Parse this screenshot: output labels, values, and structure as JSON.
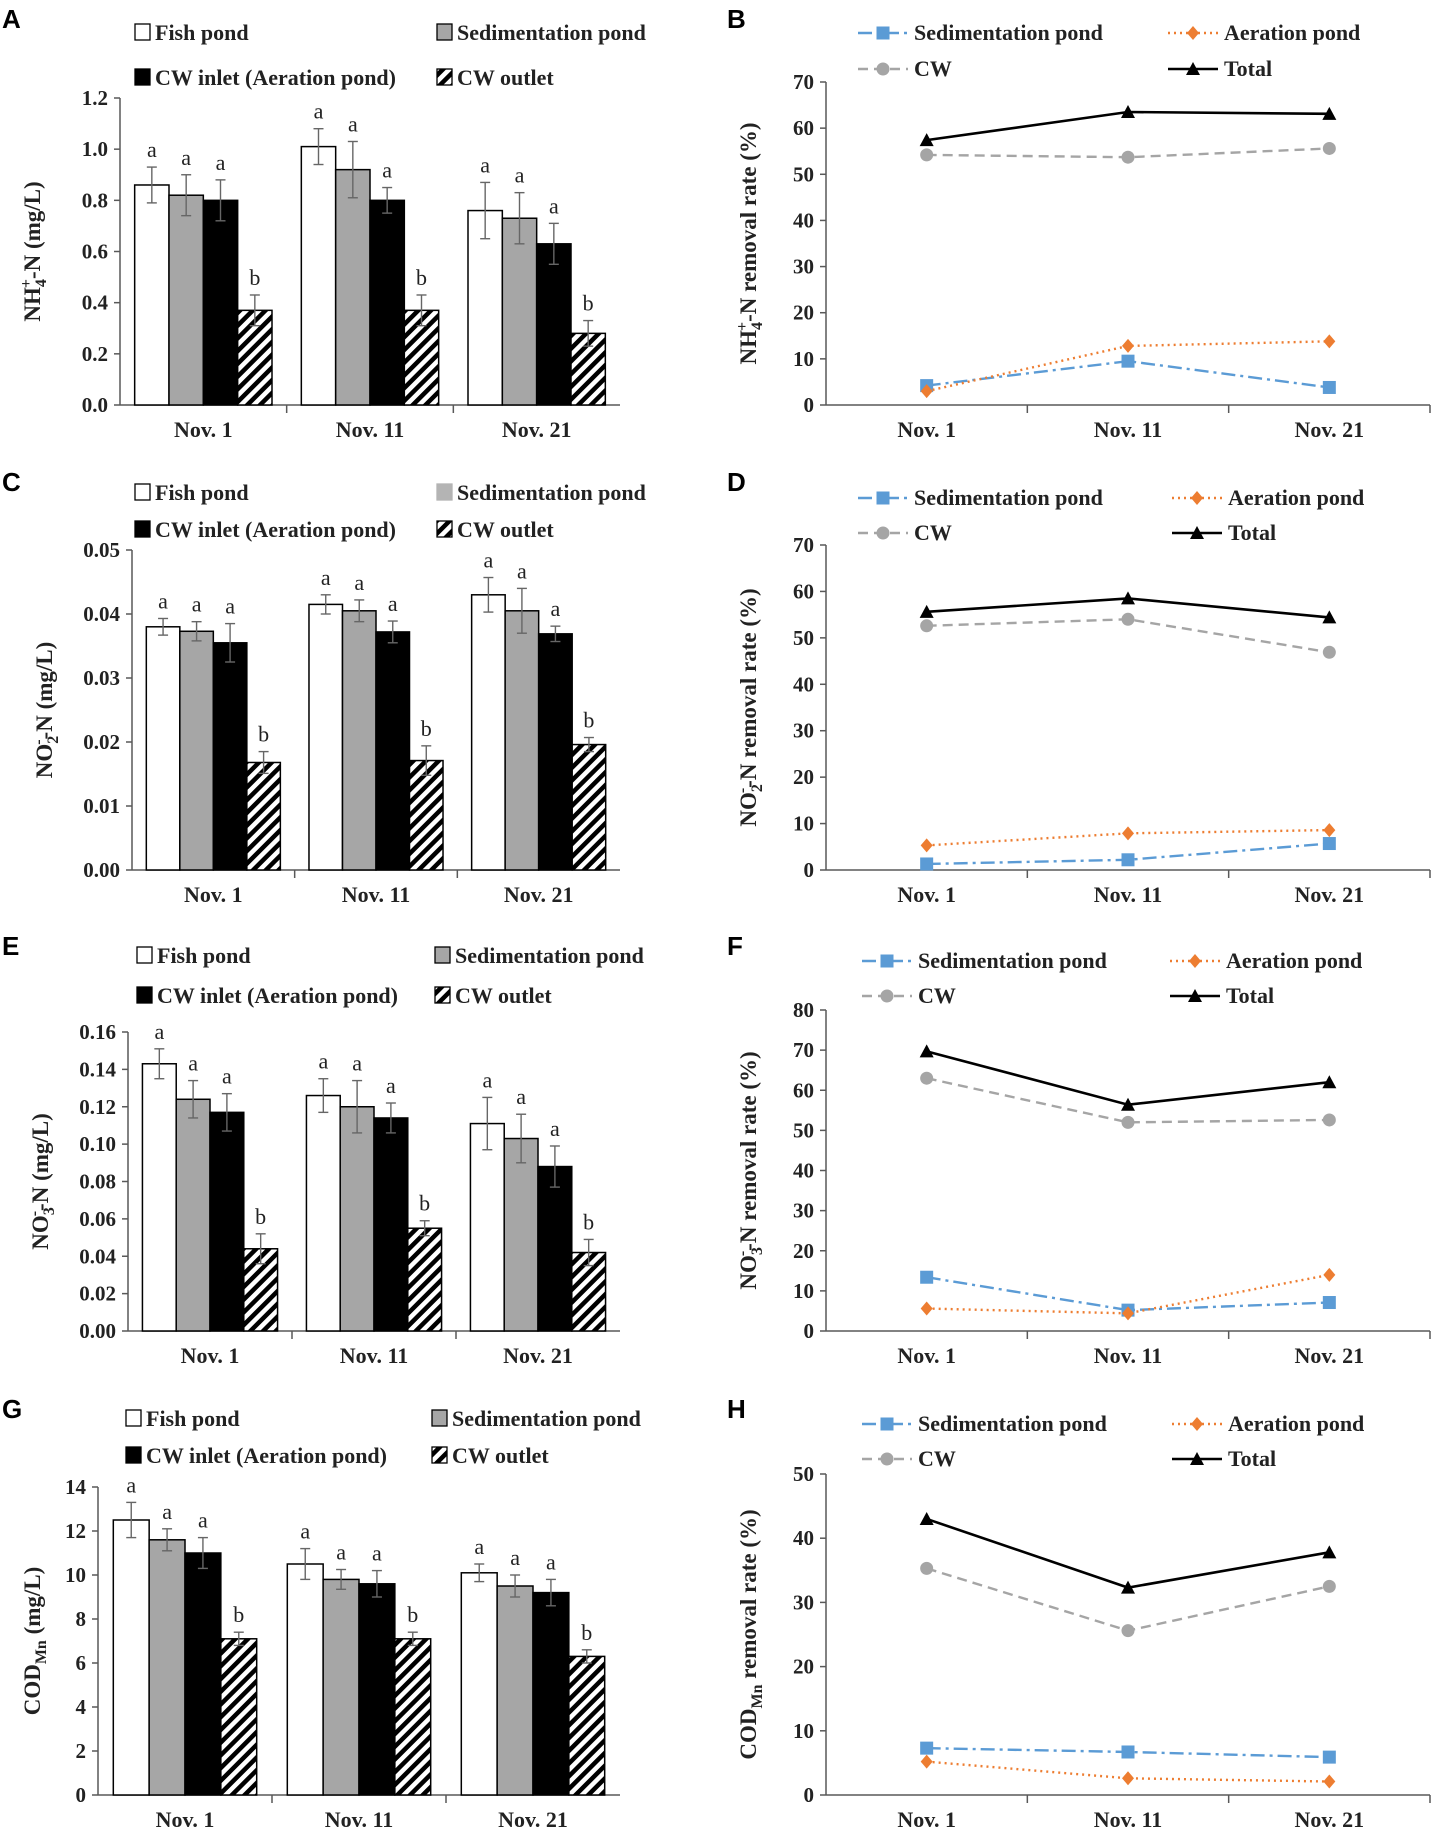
{
  "figure": {
    "panels": [
      {
        "letter": "A",
        "chart_index": 0
      },
      {
        "letter": "B",
        "chart_index": 1
      },
      {
        "letter": "C",
        "chart_index": 2
      },
      {
        "letter": "D",
        "chart_index": 3
      },
      {
        "letter": "E",
        "chart_index": 4
      },
      {
        "letter": "F",
        "chart_index": 5
      },
      {
        "letter": "G",
        "chart_index": 6
      },
      {
        "letter": "H",
        "chart_index": 7
      }
    ]
  },
  "colors": {
    "fish": "#ffffff",
    "sedimentation": "#a6a6a6",
    "inlet": "#000000",
    "sed_line": "#5b9bd5",
    "aer_line": "#ed7d31",
    "cw_line": "#a5a5a5",
    "total_line": "#000000"
  },
  "chart_data": [
    {
      "panel": "A",
      "type": "bar",
      "ylabel_main": "NH",
      "ylabel_sub": "4",
      "ylabel_sup": "+",
      "ylabel_tail": "-N   (mg/L)",
      "categories": [
        "Nov. 1",
        "Nov. 11",
        "Nov. 21"
      ],
      "ylim": [
        0,
        1.2
      ],
      "yticks": [
        "0.0",
        "0.2",
        "0.4",
        "0.6",
        "0.8",
        "1.0",
        "1.2"
      ],
      "series": [
        {
          "name": "Fish pond",
          "pattern": "fish",
          "values": [
            0.86,
            1.01,
            0.76
          ],
          "errors": [
            0.07,
            0.07,
            0.11
          ],
          "letters": [
            "a",
            "a",
            "a"
          ]
        },
        {
          "name": "Sedimentation pond",
          "pattern": "sedimentation",
          "values": [
            0.82,
            0.92,
            0.73
          ],
          "errors": [
            0.08,
            0.11,
            0.1
          ],
          "letters": [
            "a",
            "a",
            "a"
          ]
        },
        {
          "name": "CW inlet (Aeration pond)",
          "pattern": "inlet",
          "values": [
            0.8,
            0.8,
            0.63
          ],
          "errors": [
            0.08,
            0.05,
            0.08
          ],
          "letters": [
            "a",
            "a",
            "a"
          ]
        },
        {
          "name": "CW outlet",
          "pattern": "outlet",
          "values": [
            0.37,
            0.37,
            0.28
          ],
          "errors": [
            0.06,
            0.06,
            0.05
          ],
          "letters": [
            "b",
            "b",
            "b"
          ]
        }
      ]
    },
    {
      "panel": "B",
      "type": "line",
      "ylabel_main": "NH",
      "ylabel_sub": "4",
      "ylabel_sup": "+",
      "ylabel_tail": "-N removal rate (%)",
      "categories": [
        "Nov. 1",
        "Nov. 11",
        "Nov. 21"
      ],
      "ylim": [
        0,
        70
      ],
      "yticks": [
        "0",
        "10",
        "20",
        "30",
        "40",
        "50",
        "60",
        "70"
      ],
      "series": [
        {
          "name": "Sedimentation pond",
          "style": "sed",
          "values": [
            4.2,
            9.5,
            3.8
          ]
        },
        {
          "name": "Aeration pond",
          "style": "aer",
          "values": [
            3.0,
            12.8,
            13.8
          ]
        },
        {
          "name": "CW",
          "style": "cw",
          "values": [
            54.2,
            53.7,
            55.6
          ]
        },
        {
          "name": "Total",
          "style": "total",
          "values": [
            57.4,
            63.5,
            63.1
          ]
        }
      ]
    },
    {
      "panel": "C",
      "type": "bar",
      "ylabel_main": "NO",
      "ylabel_sub": "2",
      "ylabel_sup": "-",
      "ylabel_tail": "-N  (mg/L)",
      "categories": [
        "Nov. 1",
        "Nov. 11",
        "Nov. 21"
      ],
      "ylim": [
        0,
        0.05
      ],
      "yticks": [
        "0.00",
        "0.01",
        "0.02",
        "0.03",
        "0.04",
        "0.05"
      ],
      "series": [
        {
          "name": "Fish pond",
          "pattern": "fish",
          "values": [
            0.038,
            0.0415,
            0.043
          ],
          "errors": [
            0.0013,
            0.0015,
            0.0027
          ],
          "letters": [
            "a",
            "a",
            "a"
          ]
        },
        {
          "name": "Sedimentation pond",
          "pattern": "sedimentation",
          "values": [
            0.0373,
            0.0405,
            0.0405
          ],
          "errors": [
            0.0015,
            0.0017,
            0.0035
          ],
          "letters": [
            "a",
            "a",
            "a"
          ]
        },
        {
          "name": "CW inlet (Aeration pond)",
          "pattern": "inlet",
          "values": [
            0.0355,
            0.0372,
            0.0369
          ],
          "errors": [
            0.003,
            0.0017,
            0.0012
          ],
          "letters": [
            "a",
            "a",
            "a"
          ]
        },
        {
          "name": "CW outlet",
          "pattern": "outlet",
          "values": [
            0.0168,
            0.0171,
            0.0196
          ],
          "errors": [
            0.0017,
            0.0023,
            0.0011
          ],
          "letters": [
            "b",
            "b",
            "b"
          ]
        }
      ],
      "legend_gray": "#b4b4b4"
    },
    {
      "panel": "D",
      "type": "line",
      "ylabel_main": "NO",
      "ylabel_sub": "2",
      "ylabel_sup": "-",
      "ylabel_tail": "-N removal rate (%)",
      "categories": [
        "Nov. 1",
        "Nov. 11",
        "Nov. 21"
      ],
      "ylim": [
        0,
        70
      ],
      "yticks": [
        "0",
        "10",
        "20",
        "30",
        "40",
        "50",
        "60",
        "70"
      ],
      "series": [
        {
          "name": "Sedimentation pond",
          "style": "sed",
          "values": [
            1.3,
            2.2,
            5.7
          ]
        },
        {
          "name": "Aeration pond",
          "style": "aer",
          "values": [
            5.3,
            7.9,
            8.6
          ]
        },
        {
          "name": "CW",
          "style": "cw",
          "values": [
            52.6,
            54.0,
            46.9
          ]
        },
        {
          "name": "Total",
          "style": "total",
          "values": [
            55.6,
            58.5,
            54.4
          ]
        }
      ]
    },
    {
      "panel": "E",
      "type": "bar",
      "ylabel_main": "NO",
      "ylabel_sub": "3",
      "ylabel_sup": "-",
      "ylabel_tail": "-N  (mg/L)",
      "categories": [
        "Nov. 1",
        "Nov. 11",
        "Nov. 21"
      ],
      "ylim": [
        0,
        0.16
      ],
      "yticks": [
        "0.00",
        "0.02",
        "0.04",
        "0.06",
        "0.08",
        "0.10",
        "0.12",
        "0.14",
        "0.16"
      ],
      "series": [
        {
          "name": "Fish pond",
          "pattern": "fish",
          "values": [
            0.143,
            0.126,
            0.111
          ],
          "errors": [
            0.008,
            0.009,
            0.014
          ],
          "letters": [
            "a",
            "a",
            "a"
          ]
        },
        {
          "name": "Sedimentation pond",
          "pattern": "sedimentation",
          "values": [
            0.124,
            0.12,
            0.103
          ],
          "errors": [
            0.01,
            0.014,
            0.013
          ],
          "letters": [
            "a",
            "a",
            "a"
          ]
        },
        {
          "name": "CW inlet (Aeration pond)",
          "pattern": "inlet",
          "values": [
            0.117,
            0.114,
            0.088
          ],
          "errors": [
            0.01,
            0.008,
            0.011
          ],
          "letters": [
            "a",
            "a",
            "a"
          ]
        },
        {
          "name": "CW outlet",
          "pattern": "outlet",
          "values": [
            0.044,
            0.055,
            0.042
          ],
          "errors": [
            0.008,
            0.004,
            0.007
          ],
          "letters": [
            "b",
            "b",
            "b"
          ]
        }
      ]
    },
    {
      "panel": "F",
      "type": "line",
      "ylabel_main": "NO",
      "ylabel_sub": "3",
      "ylabel_sup": "-",
      "ylabel_tail": "-N removal rate (%)",
      "categories": [
        "Nov. 1",
        "Nov. 11",
        "Nov. 21"
      ],
      "ylim": [
        0,
        80
      ],
      "yticks": [
        "0",
        "10",
        "20",
        "30",
        "40",
        "50",
        "60",
        "70",
        "80"
      ],
      "series": [
        {
          "name": "Sedimentation pond",
          "style": "sed",
          "values": [
            13.4,
            5.2,
            7.1
          ]
        },
        {
          "name": "Aeration pond",
          "style": "aer",
          "values": [
            5.6,
            4.4,
            14.0
          ]
        },
        {
          "name": "CW",
          "style": "cw",
          "values": [
            63.0,
            52.0,
            52.6
          ]
        },
        {
          "name": "Total",
          "style": "total",
          "values": [
            69.7,
            56.4,
            62.0
          ]
        }
      ]
    },
    {
      "panel": "G",
      "type": "bar",
      "ylabel_main": "COD",
      "ylabel_sub": "Mn",
      "ylabel_sup": "",
      "ylabel_tail": "  (mg/L)",
      "categories": [
        "Nov. 1",
        "Nov. 11",
        "Nov. 21"
      ],
      "ylim": [
        0,
        14
      ],
      "yticks": [
        "0",
        "2",
        "4",
        "6",
        "8",
        "10",
        "12",
        "14"
      ],
      "series": [
        {
          "name": "Fish pond",
          "pattern": "fish",
          "values": [
            12.5,
            10.5,
            10.1
          ],
          "errors": [
            0.8,
            0.7,
            0.4
          ],
          "letters": [
            "a",
            "a",
            "a"
          ]
        },
        {
          "name": "Sedimentation pond",
          "pattern": "sedimentation",
          "values": [
            11.6,
            9.8,
            9.5
          ],
          "errors": [
            0.5,
            0.45,
            0.5
          ],
          "letters": [
            "a",
            "a",
            "a"
          ]
        },
        {
          "name": "CW inlet (Aeration pond)",
          "pattern": "inlet",
          "values": [
            11.0,
            9.6,
            9.2
          ],
          "errors": [
            0.7,
            0.6,
            0.6
          ],
          "letters": [
            "a",
            "a",
            "a"
          ]
        },
        {
          "name": "CW outlet",
          "pattern": "outlet",
          "values": [
            7.1,
            7.1,
            6.3
          ],
          "errors": [
            0.3,
            0.3,
            0.3
          ],
          "letters": [
            "b",
            "b",
            "b"
          ]
        }
      ]
    },
    {
      "panel": "H",
      "type": "line",
      "ylabel_main": "COD",
      "ylabel_sub": "Mn",
      "ylabel_sup": "",
      "ylabel_tail": " removal rate (%)",
      "categories": [
        "Nov. 1",
        "Nov. 11",
        "Nov. 21"
      ],
      "ylim": [
        0,
        50
      ],
      "yticks": [
        "0",
        "10",
        "20",
        "30",
        "40",
        "50"
      ],
      "series": [
        {
          "name": "Sedimentation pond",
          "style": "sed",
          "values": [
            7.3,
            6.7,
            5.9
          ]
        },
        {
          "name": "Aeration pond",
          "style": "aer",
          "values": [
            5.2,
            2.6,
            2.1
          ]
        },
        {
          "name": "CW",
          "style": "cw",
          "values": [
            35.3,
            25.6,
            32.5
          ]
        },
        {
          "name": "Total",
          "style": "total",
          "values": [
            43.0,
            32.3,
            37.8
          ]
        }
      ]
    }
  ]
}
